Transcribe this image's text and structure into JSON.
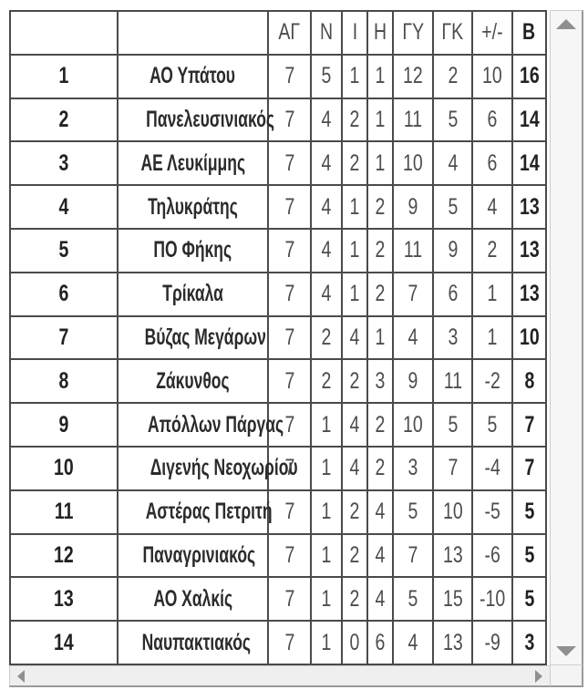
{
  "table": {
    "column_headers": [
      "",
      "",
      "ΑΓ",
      "Ν",
      "Ι",
      "Η",
      "ΓΥ",
      "ΓΚ",
      "+/-",
      "Β"
    ],
    "column_meanings": [
      "rank",
      "team",
      "games",
      "wins",
      "draws",
      "losses",
      "goals-for",
      "goals-against",
      "goal-diff",
      "points"
    ],
    "rows": [
      [
        "1",
        "ΑΟ Υπάτου",
        "7",
        "5",
        "1",
        "1",
        "12",
        "2",
        "10",
        "16"
      ],
      [
        "2",
        "Πανελευσινιακός",
        "7",
        "4",
        "2",
        "1",
        "11",
        "5",
        "6",
        "14"
      ],
      [
        "3",
        "ΑΕ Λευκίμμης",
        "7",
        "4",
        "2",
        "1",
        "10",
        "4",
        "6",
        "14"
      ],
      [
        "4",
        "Τηλυκράτης",
        "7",
        "4",
        "1",
        "2",
        "9",
        "5",
        "4",
        "13"
      ],
      [
        "5",
        "ΠΟ Φήκης",
        "7",
        "4",
        "1",
        "2",
        "11",
        "9",
        "2",
        "13"
      ],
      [
        "6",
        "Τρίκαλα",
        "7",
        "4",
        "1",
        "2",
        "7",
        "6",
        "1",
        "13"
      ],
      [
        "7",
        "Βύζας Μεγάρων",
        "7",
        "2",
        "4",
        "1",
        "4",
        "3",
        "1",
        "10"
      ],
      [
        "8",
        "Ζάκυνθος",
        "7",
        "2",
        "2",
        "3",
        "9",
        "11",
        "-2",
        "8"
      ],
      [
        "9",
        "Απόλλων Πάργας",
        "7",
        "1",
        "4",
        "2",
        "10",
        "5",
        "5",
        "7"
      ],
      [
        "10",
        "Διγενής Νεοχωρίου",
        "7",
        "1",
        "4",
        "2",
        "3",
        "7",
        "-4",
        "7"
      ],
      [
        "11",
        "Αστέρας Πετριτή",
        "7",
        "1",
        "2",
        "4",
        "5",
        "10",
        "-5",
        "5"
      ],
      [
        "12",
        "Παναγρινιακός",
        "7",
        "1",
        "2",
        "4",
        "7",
        "13",
        "-6",
        "5"
      ],
      [
        "13",
        "ΑΟ Χαλκίς",
        "7",
        "1",
        "2",
        "4",
        "5",
        "15",
        "-10",
        "5"
      ],
      [
        "14",
        "Ναυπακτιακός",
        "7",
        "1",
        "0",
        "6",
        "4",
        "13",
        "-9",
        "3"
      ]
    ]
  },
  "scrollbar": {
    "vertical": {
      "up_icon": "scroll-up-arrow",
      "down_icon": "scroll-down-arrow"
    },
    "horizontal": {
      "left_icon": "scroll-left-arrow",
      "right_icon": "scroll-right-arrow"
    }
  },
  "colors": {
    "table_border": "#4a4a4a",
    "text_primary": "#222222",
    "text_secondary": "#4d4d4d",
    "scrollbar_track": "#f6f6f6",
    "scrollbar_edge": "#9a9a9a",
    "scrollbar_arrow": "#8f8f8f",
    "background": "#ffffff"
  }
}
